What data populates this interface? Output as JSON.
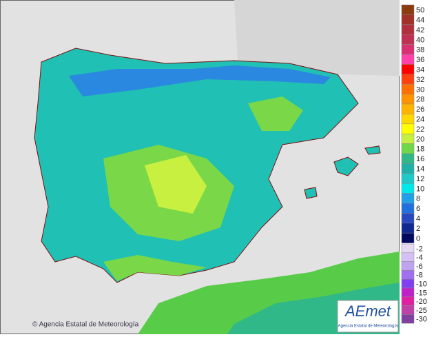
{
  "legend": {
    "positive": [
      {
        "label": "50",
        "color": "#8c3a10"
      },
      {
        "label": "44",
        "color": "#a03028"
      },
      {
        "label": "42",
        "color": "#b0303c"
      },
      {
        "label": "40",
        "color": "#c03050"
      },
      {
        "label": "38",
        "color": "#d83070"
      },
      {
        "label": "36",
        "color": "#ff40a8"
      },
      {
        "label": "34",
        "color": "#ff0000"
      },
      {
        "label": "32",
        "color": "#ff4010"
      },
      {
        "label": "30",
        "color": "#ff7000"
      },
      {
        "label": "28",
        "color": "#ff9400"
      },
      {
        "label": "26",
        "color": "#ffb400"
      },
      {
        "label": "24",
        "color": "#ffd800"
      },
      {
        "label": "22",
        "color": "#ffff00"
      },
      {
        "label": "20",
        "color": "#c4f040"
      },
      {
        "label": "18",
        "color": "#70d848"
      },
      {
        "label": "16",
        "color": "#30b888"
      },
      {
        "label": "14",
        "color": "#20b0a8"
      },
      {
        "label": "12",
        "color": "#20c8c8"
      },
      {
        "label": "10",
        "color": "#00e8e8"
      },
      {
        "label": "8",
        "color": "#20a0e8"
      },
      {
        "label": "6",
        "color": "#2070e0"
      },
      {
        "label": "4",
        "color": "#2848c0"
      },
      {
        "label": "2",
        "color": "#102890"
      },
      {
        "label": "0",
        "color": "#000860"
      }
    ],
    "negative": [
      {
        "label": "-2",
        "color": "#e4d8f4"
      },
      {
        "label": "-4",
        "color": "#d4c0f4"
      },
      {
        "label": "-6",
        "color": "#c0a4f0"
      },
      {
        "label": "-8",
        "color": "#a070f0"
      },
      {
        "label": "-10",
        "color": "#8040f0"
      },
      {
        "label": "-15",
        "color": "#c020c8"
      },
      {
        "label": "-20",
        "color": "#e020a0"
      },
      {
        "label": "-25",
        "color": "#c040a8"
      },
      {
        "label": "-30",
        "color": "#8040a0"
      }
    ]
  },
  "footer": {
    "copyright": "© Agencia Estatal de Meteorología"
  },
  "logo": {
    "name": "AEmet",
    "subtitle": "Agencia Estatal de Meteorología"
  }
}
